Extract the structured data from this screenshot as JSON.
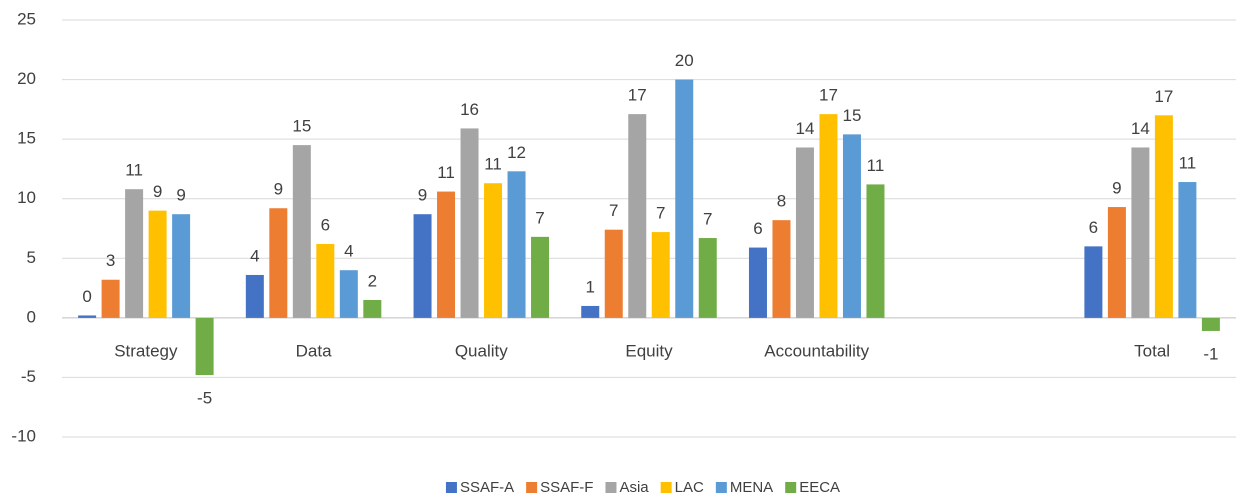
{
  "chart_data": {
    "type": "bar",
    "categories": [
      "Strategy",
      "Data",
      "Quality",
      "Equity",
      "Accountability",
      null,
      "Total"
    ],
    "series": [
      {
        "name": "SSAF-A",
        "color": "#4472c4",
        "values": [
          0.2,
          3.6,
          8.7,
          1,
          5.9,
          null,
          6
        ],
        "value_labels": [
          "0",
          "4",
          "9",
          "1",
          "6",
          null,
          "6"
        ]
      },
      {
        "name": "SSAF-F",
        "color": "#ed7d31",
        "values": [
          3.2,
          9.2,
          10.6,
          7.4,
          8.2,
          null,
          9.3
        ],
        "value_labels": [
          "3",
          "9",
          "11",
          "7",
          "8",
          null,
          "9"
        ]
      },
      {
        "name": "Asia",
        "color": "#a5a5a5",
        "values": [
          10.8,
          14.5,
          15.9,
          17.1,
          14.3,
          null,
          14.3
        ],
        "value_labels": [
          "11",
          "15",
          "16",
          "17",
          "14",
          null,
          "14"
        ]
      },
      {
        "name": "LAC",
        "color": "#ffc000",
        "values": [
          9,
          6.2,
          11.3,
          7.2,
          17.1,
          null,
          17
        ],
        "value_labels": [
          "9",
          "6",
          "11",
          "7",
          "17",
          null,
          "17"
        ]
      },
      {
        "name": "MENA",
        "color": "#5b9bd5",
        "values": [
          8.7,
          4,
          12.3,
          20,
          15.4,
          null,
          11.4
        ],
        "value_labels": [
          "9",
          "4",
          "12",
          "20",
          "15",
          null,
          "11"
        ]
      },
      {
        "name": "EECA",
        "color": "#70ad47",
        "values": [
          -4.8,
          1.5,
          6.8,
          6.7,
          11.2,
          null,
          -1.1
        ],
        "value_labels": [
          "-5",
          "2",
          "7",
          "7",
          "11",
          null,
          "-1"
        ]
      }
    ],
    "ylim": [
      -10,
      25
    ],
    "yticks": [
      -10,
      -5,
      0,
      5,
      10,
      15,
      20,
      25
    ],
    "grid": true,
    "legend": "bottom"
  }
}
